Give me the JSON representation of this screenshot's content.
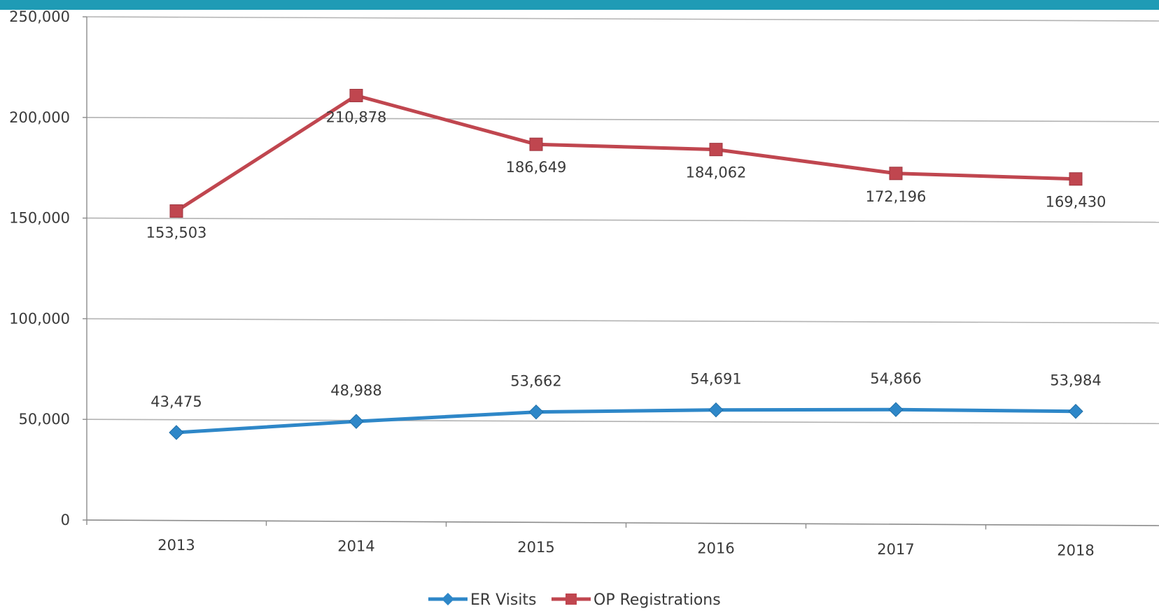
{
  "chart_data": {
    "type": "line",
    "categories": [
      "2013",
      "2014",
      "2015",
      "2016",
      "2017",
      "2018"
    ],
    "series": [
      {
        "name": "ER Visits",
        "values": [
          43475,
          48988,
          53662,
          54691,
          54866,
          53984
        ],
        "labels": [
          "43,475",
          "48,988",
          "53,662",
          "54,691",
          "54,866",
          "53,984"
        ],
        "color": "#2e87c8",
        "marker": "diamond"
      },
      {
        "name": "OP Registrations",
        "values": [
          153503,
          210878,
          186649,
          184062,
          172196,
          169430
        ],
        "labels": [
          "153,503",
          "210,878",
          "186,649",
          "184,062",
          "172,196",
          "169,430"
        ],
        "color": "#c0464f",
        "marker": "square"
      }
    ],
    "ylim": [
      0,
      250000
    ],
    "yticks": [
      0,
      50000,
      100000,
      150000,
      200000,
      250000
    ],
    "ytick_labels": [
      "0",
      "50,000",
      "100,000",
      "150,000",
      "200,000",
      "250,000"
    ],
    "grid": true,
    "legend": "bottom-center",
    "accent_color": "#1f9bb5"
  }
}
